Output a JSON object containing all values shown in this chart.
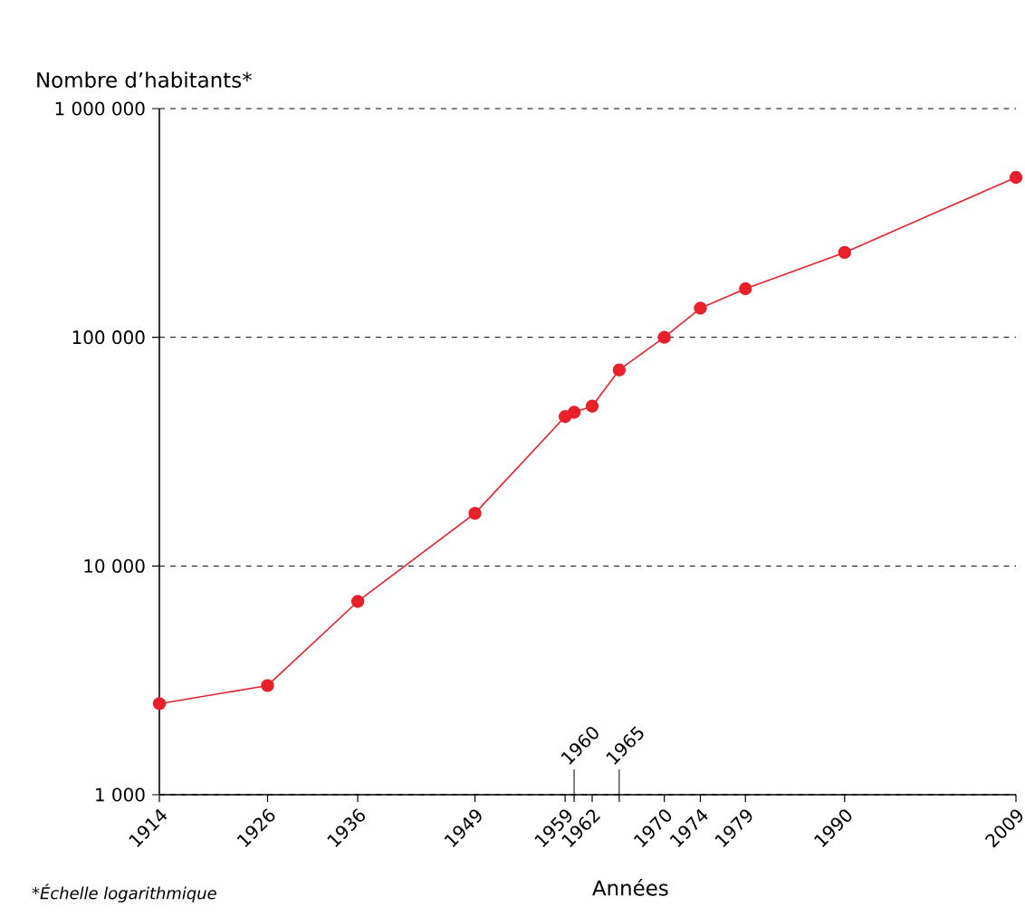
{
  "chart_data": {
    "type": "line",
    "ylabel": "Nombre d’habitants*",
    "xlabel": "Années",
    "annotations": [
      "*Échelle logarithmique",
      "1960",
      "1965"
    ],
    "x": [
      1914,
      1926,
      1936,
      1949,
      1959,
      1960,
      1962,
      1965,
      1970,
      1974,
      1979,
      1990,
      2009
    ],
    "series": [
      {
        "color": "#e8202a",
        "values": [
          2500,
          3000,
          7000,
          17000,
          45000,
          47000,
          50000,
          72000,
          100000,
          134000,
          163000,
          235000,
          500000
        ]
      }
    ],
    "log": "y",
    "xlim": [
      1914,
      2009
    ],
    "ylim": [
      1000,
      1000000
    ],
    "xticks": [
      1914,
      1926,
      1936,
      1949,
      1959,
      {
        "value": 1960,
        "label": null
      },
      1962,
      {
        "value": 1965,
        "label": null
      },
      1970,
      1974,
      1979,
      1990,
      2009
    ],
    "yticks": [
      {
        "value": 1000,
        "label": "1 000"
      },
      {
        "value": 10000,
        "label": "10 000"
      },
      {
        "value": 100000,
        "label": "100 000"
      },
      {
        "value": 1000000,
        "label": "1 000 000"
      }
    ],
    "grid": "y",
    "marker": "circle",
    "line_style": "solid"
  }
}
